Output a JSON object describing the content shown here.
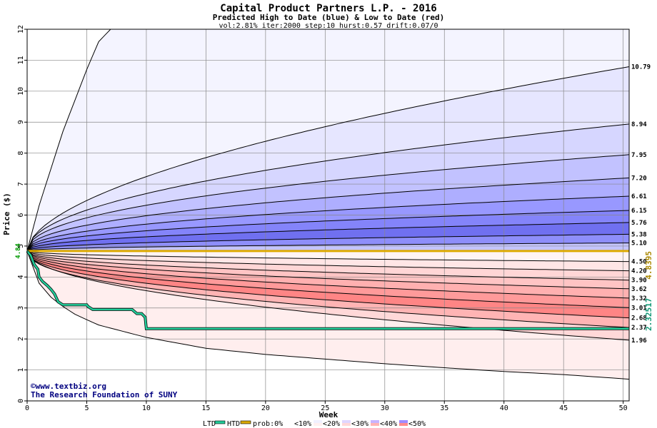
{
  "chart_data": {
    "type": "area",
    "title": "Capital Product Partners L.P. - 2016",
    "subtitle": "Predicted High to Date (blue) &  Low to Date (red)",
    "params": "vol:2.81% iter:2000 step:10 hurst:0.57 drift:0.07/0",
    "xlabel": "Week",
    "ylabel": "Price ($)",
    "xlim": [
      0,
      50.5
    ],
    "ylim": [
      0,
      12
    ],
    "x_ticks": [
      0,
      5,
      10,
      15,
      20,
      25,
      30,
      35,
      40,
      45,
      50
    ],
    "y_ticks": [
      0,
      1,
      2,
      3,
      4,
      5,
      6,
      7,
      8,
      9,
      10,
      11,
      12
    ],
    "grid": true,
    "start_price": 4.84,
    "start_price_label": "4.84",
    "high_quantiles": [
      {
        "label": "10.79",
        "end": 10.79,
        "p": 0.56
      },
      {
        "label": "8.94",
        "end": 8.94,
        "p": 0.49
      },
      {
        "label": "7.95",
        "end": 7.95,
        "p": 0.46
      },
      {
        "label": "7.20",
        "end": 7.2,
        "p": 0.45
      },
      {
        "label": "6.61",
        "end": 6.61,
        "p": 0.44
      },
      {
        "label": "6.15",
        "end": 6.15,
        "p": 0.43
      },
      {
        "label": "5.76",
        "end": 5.76,
        "p": 0.43
      },
      {
        "label": "5.38",
        "end": 5.38,
        "p": 0.43
      },
      {
        "label": "5.10",
        "end": 5.1,
        "p": 0.43
      }
    ],
    "low_quantiles": [
      {
        "label": "4.50",
        "end": 4.5,
        "p": 0.45
      },
      {
        "label": "4.20",
        "end": 4.2,
        "p": 0.45
      },
      {
        "label": "3.90",
        "end": 3.9,
        "p": 0.45
      },
      {
        "label": "3.62",
        "end": 3.62,
        "p": 0.45
      },
      {
        "label": "3.32",
        "end": 3.32,
        "p": 0.45
      },
      {
        "label": "3.01",
        "end": 3.01,
        "p": 0.45
      },
      {
        "label": "2.68",
        "end": 2.68,
        "p": 0.45
      },
      {
        "label": "2.37",
        "end": 2.37,
        "p": 0.45
      },
      {
        "label": "1.96",
        "end": 1.96,
        "p": 0.5
      }
    ],
    "htd_line": {
      "name": "HTD",
      "value": 4.8395,
      "label": "4.8395",
      "color": "#ddaa00"
    },
    "ltd_line": {
      "name": "LTD",
      "label": "2.32517",
      "color": "#22cc99",
      "points": [
        [
          0,
          4.84
        ],
        [
          0.3,
          4.7
        ],
        [
          0.6,
          4.4
        ],
        [
          0.9,
          4.25
        ],
        [
          1.0,
          4.0
        ],
        [
          1.3,
          3.85
        ],
        [
          1.7,
          3.72
        ],
        [
          2.0,
          3.6
        ],
        [
          2.3,
          3.45
        ],
        [
          2.6,
          3.2
        ],
        [
          3.0,
          3.1
        ],
        [
          5.0,
          3.1
        ],
        [
          5.1,
          3.05
        ],
        [
          5.5,
          2.95
        ],
        [
          8.8,
          2.95
        ],
        [
          9.2,
          2.82
        ],
        [
          9.6,
          2.82
        ],
        [
          9.9,
          2.7
        ],
        [
          10.0,
          2.33
        ],
        [
          50.5,
          2.33
        ]
      ]
    },
    "upper_envelope": [
      [
        0,
        4.84
      ],
      [
        1,
        6.3
      ],
      [
        2,
        7.5
      ],
      [
        3,
        8.7
      ],
      [
        4,
        9.7
      ],
      [
        5,
        10.7
      ],
      [
        6,
        11.6
      ],
      [
        7,
        12.0
      ],
      [
        50.5,
        12.0
      ]
    ],
    "lower_envelope_knots": [
      [
        0,
        4.84
      ],
      [
        1,
        3.8
      ],
      [
        2,
        3.35
      ],
      [
        3,
        3.05
      ],
      [
        4,
        2.8
      ],
      [
        5,
        2.62
      ],
      [
        6,
        2.45
      ],
      [
        8,
        2.25
      ],
      [
        10,
        2.05
      ],
      [
        15,
        1.7
      ],
      [
        20,
        1.5
      ],
      [
        25,
        1.35
      ],
      [
        30,
        1.2
      ],
      [
        35,
        1.07
      ],
      [
        40,
        0.95
      ],
      [
        45,
        0.85
      ],
      [
        50.5,
        0.7
      ]
    ],
    "band_colors": [
      "#f2f2ff",
      "#dedeff",
      "#cacaff",
      "#b2b2ff",
      "#9c9cff",
      "#8686ff",
      "#7070f2",
      "#5a5ae6"
    ],
    "band_colors_low": [
      "#fff0f0",
      "#ffe0e0",
      "#ffd0d0",
      "#ffc0c0",
      "#ffaaaa",
      "#ff9595",
      "#ff8080",
      "#f26a6a"
    ],
    "credits": [
      "©www.textbiz.org",
      "The Research Foundation of SUNY"
    ],
    "legend": {
      "ltd": "LTD",
      "htd": "HTD",
      "items": [
        "prob:0%",
        "<10%",
        "<20%",
        "<30%",
        "<40%",
        "<50%"
      ]
    }
  }
}
